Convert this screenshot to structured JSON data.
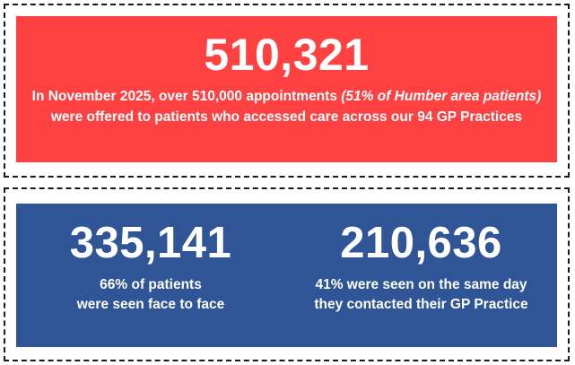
{
  "headline": {
    "number": "510,321",
    "caption_part1": "In November 2025, over 510,000 appointments ",
    "caption_italic": "(51% of Humber area patients)",
    "caption_part2": " were offered to patients who accessed care across our 94 GP Practices"
  },
  "stats": [
    {
      "number": "335,141",
      "caption_line1": "66% of patients",
      "caption_line2": "were seen face to face"
    },
    {
      "number": "210,636",
      "caption_line1": "41% were seen on the same day",
      "caption_line2": "they contacted their GP Practice"
    }
  ],
  "colors": {
    "headline_panel": "#ff4141",
    "stats_panel": "#2f5597",
    "text": "#ffffff",
    "dashed_frame": "#1a1a1a"
  }
}
